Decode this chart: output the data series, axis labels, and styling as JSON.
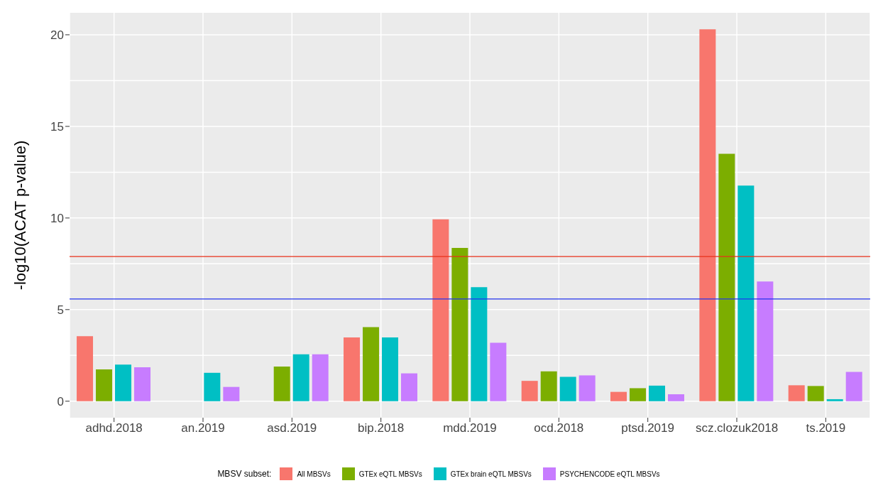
{
  "chart_data": {
    "type": "bar",
    "ylabel": "-log10(ACAT p-value)",
    "legend_title": "MBSV subset:",
    "categories": [
      "adhd.2018",
      "an.2019",
      "asd.2019",
      "bip.2018",
      "mdd.2019",
      "ocd.2018",
      "ptsd.2019",
      "scz.clozuk2018",
      "ts.2019"
    ],
    "series": [
      {
        "name": "All MBSVs",
        "color": "#f8766d",
        "values": [
          3.55,
          null,
          null,
          3.48,
          9.93,
          1.11,
          0.51,
          20.3,
          0.87
        ]
      },
      {
        "name": "GTEx eQTL MBSVs",
        "color": "#7cae00",
        "values": [
          1.74,
          null,
          1.89,
          4.04,
          8.37,
          1.63,
          0.71,
          13.5,
          0.83
        ]
      },
      {
        "name": "GTEx brain eQTL MBSVs",
        "color": "#00bfc4",
        "values": [
          2.0,
          1.55,
          2.56,
          3.48,
          6.22,
          1.33,
          0.85,
          11.77,
          0.11
        ]
      },
      {
        "name": "PSYCHENCODE eQTL MBSVs",
        "color": "#c77cff",
        "values": [
          1.85,
          0.78,
          2.56,
          1.52,
          3.19,
          1.41,
          0.38,
          6.53,
          1.6
        ]
      }
    ],
    "ylim": [
      -0.9,
      21.2
    ],
    "yticks": [
      0,
      5,
      10,
      15,
      20
    ],
    "grid": true,
    "legend": "bottom",
    "ref_lines": [
      {
        "axis": "y",
        "value": 7.9,
        "color": "#e8311a"
      },
      {
        "axis": "y",
        "value": 5.58,
        "color": "#2233ee"
      }
    ]
  }
}
